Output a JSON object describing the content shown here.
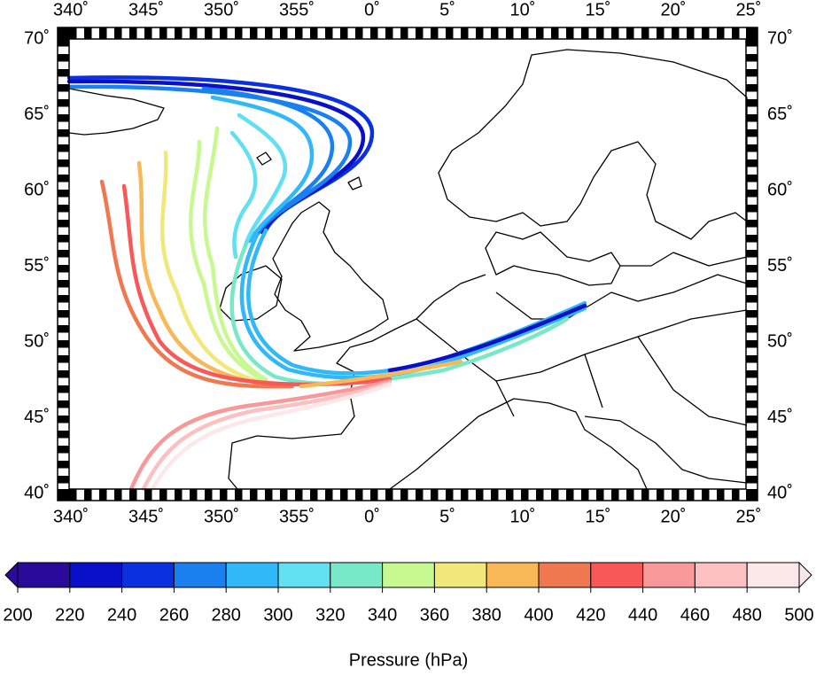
{
  "map": {
    "lon_labels": [
      "340˚",
      "345˚",
      "350˚",
      "355˚",
      "0˚",
      "5˚",
      "10˚",
      "15˚",
      "20˚",
      "25˚"
    ],
    "lat_labels": [
      "40˚",
      "45˚",
      "50˚",
      "55˚",
      "60˚",
      "65˚",
      "70˚"
    ]
  },
  "colorbar": {
    "title": "Pressure (hPa)",
    "ticks": [
      200,
      220,
      240,
      260,
      280,
      300,
      320,
      340,
      360,
      380,
      400,
      420,
      440,
      460,
      480,
      500
    ],
    "colors": [
      "#2a0a9a",
      "#0a10c8",
      "#0a30e0",
      "#1a80f0",
      "#30b8f8",
      "#60e0f0",
      "#78e8c8",
      "#c8f890",
      "#f0e878",
      "#f8b858",
      "#f07850",
      "#f85858",
      "#f89898",
      "#fcc0c0",
      "#fce8e8"
    ]
  }
}
